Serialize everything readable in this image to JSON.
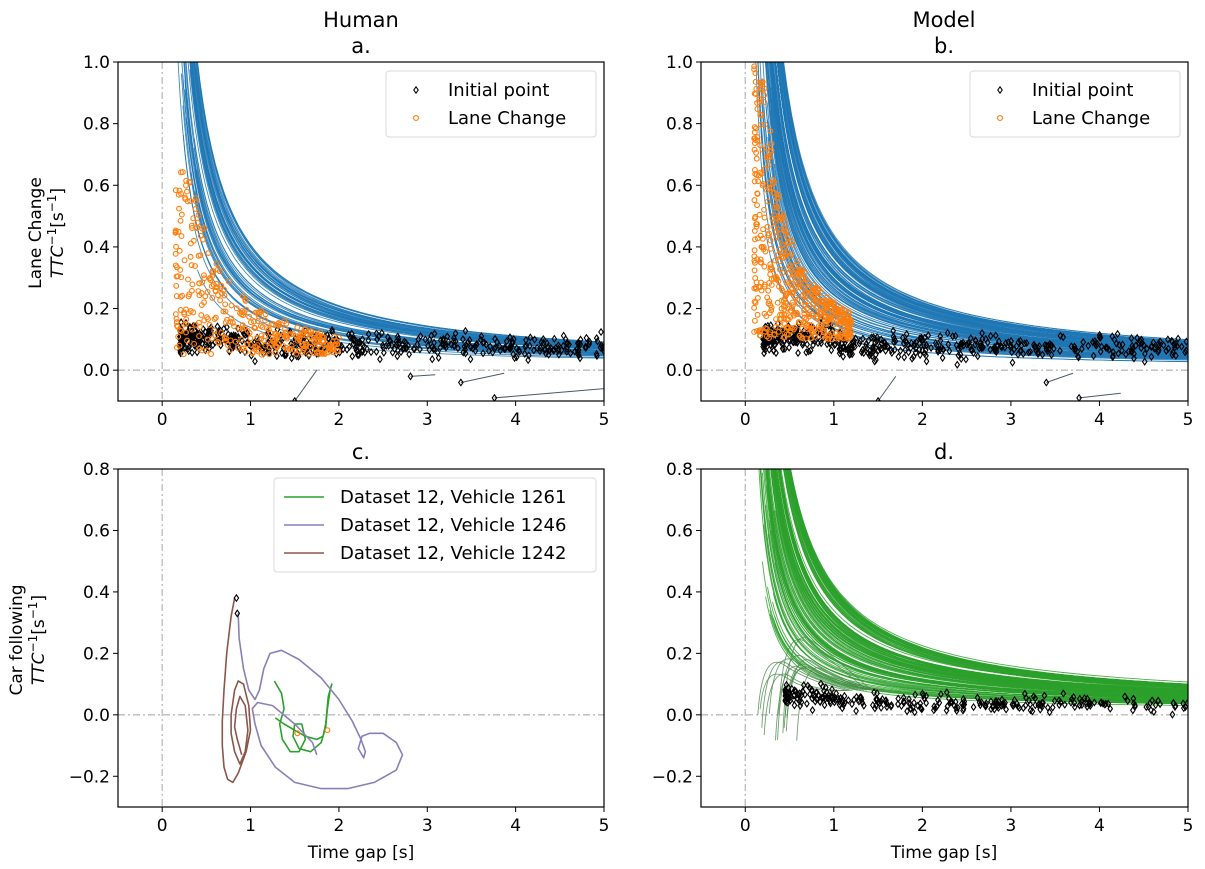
{
  "figure": {
    "column_titles": [
      "Human",
      "Model"
    ],
    "row_labels": [
      {
        "line1": "Lane Change",
        "line2": "TTC",
        "sup": "−1",
        "unit_open": "[s",
        "unit_sup": "−1",
        "unit_close": "]"
      },
      {
        "line1": "Car following",
        "line2": "TTC",
        "sup": "−1",
        "unit_open": "[s",
        "unit_sup": "−1",
        "unit_close": "]"
      }
    ],
    "xlabel": "Time gap [s]"
  },
  "colors": {
    "trajectory_blue": "#1f77b4",
    "lane_change_orange": "#ff7f0e",
    "initial_point_black": "#000000",
    "car_following_green": "#2ca02c",
    "vehicle_1246_purple": "#8c7fb8",
    "vehicle_1242_brown": "#8c564b",
    "zero_line_gray": "#bbbbbb"
  },
  "chart_data": [
    {
      "id": "a",
      "type": "scatter",
      "panel_label": "a.",
      "title": "Human",
      "xlabel": "",
      "ylabel": "Lane Change TTC^-1 [s^-1]",
      "xlim": [
        -0.5,
        5
      ],
      "ylim": [
        -0.1,
        1.0
      ],
      "xticks": [
        0,
        1,
        2,
        3,
        4,
        5
      ],
      "yticks": [
        0.0,
        0.2,
        0.4,
        0.6,
        0.8,
        1.0
      ],
      "ytick_labels": [
        "0.0",
        "0.2",
        "0.4",
        "0.6",
        "0.8",
        "1.0"
      ],
      "reference_lines": {
        "x": 0,
        "y": 0
      },
      "legend": {
        "position": "top-right",
        "entries": [
          {
            "label": "Initial point",
            "marker": "diamond",
            "color": "#000000"
          },
          {
            "label": "Lane Change",
            "marker": "circle",
            "color": "#ff7f0e"
          }
        ]
      },
      "series": [
        {
          "name": "Trajectories",
          "kind": "curves",
          "color": "#1f77b4",
          "count": 60,
          "description": "hyperbolic decay TTC^-1 ~ k / time gap, k from 0.12 to 0.42",
          "k_range": [
            0.12,
            0.42
          ],
          "x_range": [
            0.15,
            5.0
          ]
        },
        {
          "name": "Initial point",
          "kind": "points",
          "marker": "diamond",
          "color": "#000000",
          "cluster": {
            "x_range": [
              0.2,
              5.0
            ],
            "y_center": 0.08,
            "y_spread": 0.07,
            "count": 500
          }
        },
        {
          "name": "Lane Change",
          "kind": "points",
          "marker": "circle",
          "color": "#ff7f0e",
          "cluster": {
            "x_range": [
              0.15,
              2.0
            ],
            "y_range": [
              0.05,
              0.66
            ],
            "count": 350
          }
        },
        {
          "name": "Outliers",
          "kind": "segments",
          "color": "#000000",
          "points": [
            [
              3.38,
              -0.04,
              3.87,
              -0.01
            ],
            [
              3.76,
              -0.09,
              5.0,
              -0.06
            ],
            [
              2.81,
              -0.02,
              3.09,
              -0.015
            ],
            [
              1.5,
              -0.1,
              1.75,
              0.0
            ]
          ]
        }
      ]
    },
    {
      "id": "b",
      "type": "scatter",
      "panel_label": "b.",
      "title": "Model",
      "xlabel": "",
      "ylabel": "",
      "xlim": [
        -0.5,
        5
      ],
      "ylim": [
        -0.1,
        1.0
      ],
      "xticks": [
        0,
        1,
        2,
        3,
        4,
        5
      ],
      "yticks": [
        0.0,
        0.2,
        0.4,
        0.6,
        0.8,
        1.0
      ],
      "ytick_labels": [
        "0.0",
        "0.2",
        "0.4",
        "0.6",
        "0.8",
        "1.0"
      ],
      "reference_lines": {
        "x": 0,
        "y": 0
      },
      "legend": {
        "position": "top-right",
        "entries": [
          {
            "label": "Initial point",
            "marker": "diamond",
            "color": "#000000"
          },
          {
            "label": "Lane Change",
            "marker": "circle",
            "color": "#ff7f0e"
          }
        ]
      },
      "series": [
        {
          "name": "Trajectories",
          "kind": "curves",
          "color": "#1f77b4",
          "count": 120,
          "description": "dense hyperbolic band, k from 0.10 to 0.45",
          "k_range": [
            0.1,
            0.45
          ],
          "x_range": [
            0.1,
            5.0
          ]
        },
        {
          "name": "Initial point",
          "kind": "points",
          "marker": "diamond",
          "color": "#000000",
          "cluster": {
            "x_range": [
              0.2,
              5.0
            ],
            "y_center": 0.08,
            "y_spread": 0.07,
            "count": 500
          }
        },
        {
          "name": "Lane Change",
          "kind": "points",
          "marker": "circle",
          "color": "#ff7f0e",
          "cluster": {
            "x_range": [
              0.1,
              1.2
            ],
            "y_range": [
              0.1,
              1.0
            ],
            "count": 500
          }
        },
        {
          "name": "Outliers",
          "kind": "segments",
          "color": "#000000",
          "points": [
            [
              3.4,
              -0.04,
              3.7,
              -0.01
            ],
            [
              3.77,
              -0.09,
              4.24,
              -0.075
            ],
            [
              1.5,
              -0.1,
              1.7,
              -0.02
            ]
          ]
        }
      ]
    },
    {
      "id": "c",
      "type": "line",
      "panel_label": "c.",
      "title": "",
      "xlabel": "Time gap [s]",
      "ylabel": "Car following TTC^-1 [s^-1]",
      "xlim": [
        -0.5,
        5
      ],
      "ylim": [
        -0.3,
        0.8
      ],
      "xticks": [
        0,
        1,
        2,
        3,
        4,
        5
      ],
      "yticks": [
        -0.2,
        0.0,
        0.2,
        0.4,
        0.6,
        0.8
      ],
      "ytick_labels": [
        "−0.2",
        "0.0",
        "0.2",
        "0.4",
        "0.6",
        "0.8"
      ],
      "reference_lines": {
        "x": 0,
        "y": 0
      },
      "legend": {
        "position": "top-right",
        "entries": [
          {
            "label": "Dataset 12, Vehicle 1261",
            "color": "#2ca02c"
          },
          {
            "label": "Dataset 12, Vehicle 1246",
            "color": "#8c7fb8"
          },
          {
            "label": "Dataset 12, Vehicle 1242",
            "color": "#8c564b"
          }
        ]
      },
      "series": [
        {
          "name": "Dataset 12, Vehicle 1261",
          "color": "#2ca02c",
          "x": [
            1.27,
            1.35,
            1.38,
            1.33,
            1.36,
            1.45,
            1.55,
            1.62,
            1.58,
            1.5,
            1.48,
            1.55,
            1.68,
            1.8,
            1.85,
            1.87,
            1.9,
            1.92,
            1.88,
            1.85,
            1.82,
            1.75,
            1.62,
            1.5,
            1.38,
            1.28
          ],
          "y": [
            0.11,
            0.07,
            0.02,
            -0.03,
            -0.08,
            -0.12,
            -0.12,
            -0.08,
            -0.03,
            -0.03,
            -0.07,
            -0.11,
            -0.12,
            -0.09,
            -0.04,
            0.02,
            0.08,
            0.1,
            0.06,
            -0.03,
            -0.07,
            -0.08,
            -0.07,
            -0.05,
            -0.03,
            -0.01
          ]
        },
        {
          "name": "Dataset 12, Vehicle 1246",
          "color": "#8c7fb8",
          "x": [
            0.86,
            0.87,
            0.92,
            0.98,
            1.05,
            1.1,
            1.15,
            1.22,
            1.35,
            1.55,
            1.8,
            2.0,
            2.15,
            2.25,
            2.3,
            2.28,
            2.22,
            2.26,
            2.35,
            2.5,
            2.65,
            2.72,
            2.65,
            2.4,
            2.1,
            1.8,
            1.5,
            1.28,
            1.12,
            1.05,
            1.02,
            1.08,
            1.25,
            1.5,
            1.7,
            1.75
          ],
          "y": [
            0.33,
            0.25,
            0.15,
            0.08,
            0.05,
            0.08,
            0.15,
            0.2,
            0.21,
            0.18,
            0.12,
            0.05,
            -0.02,
            -0.08,
            -0.12,
            -0.14,
            -0.11,
            -0.07,
            -0.06,
            -0.06,
            -0.09,
            -0.13,
            -0.18,
            -0.22,
            -0.24,
            -0.24,
            -0.22,
            -0.17,
            -0.1,
            -0.03,
            0.02,
            0.04,
            0.03,
            -0.03,
            -0.09,
            -0.13
          ]
        },
        {
          "name": "Dataset 12, Vehicle 1242",
          "color": "#8c564b",
          "x": [
            0.82,
            0.78,
            0.73,
            0.7,
            0.68,
            0.68,
            0.7,
            0.74,
            0.8,
            0.86,
            0.95,
            1.0,
            0.98,
            0.92,
            0.86,
            0.82,
            0.78,
            0.78,
            0.82,
            0.88,
            0.94,
            0.97,
            0.94,
            0.88,
            0.84,
            0.82,
            0.85,
            0.9
          ],
          "y": [
            0.38,
            0.32,
            0.2,
            0.08,
            -0.02,
            -0.1,
            -0.17,
            -0.21,
            -0.22,
            -0.19,
            -0.12,
            -0.05,
            0.03,
            0.1,
            0.11,
            0.08,
            0.0,
            -0.06,
            -0.12,
            -0.16,
            -0.12,
            -0.05,
            0.03,
            0.06,
            0.02,
            -0.04,
            -0.08,
            -0.13
          ]
        }
      ],
      "markers": [
        {
          "label": "Initial point",
          "marker": "diamond",
          "x": 0.84,
          "y": 0.38
        },
        {
          "label": "Initial point",
          "marker": "diamond",
          "x": 0.85,
          "y": 0.33
        },
        {
          "label": "Lane Change",
          "marker": "circle",
          "x": 1.53,
          "y": -0.06
        },
        {
          "label": "Lane Change",
          "marker": "circle",
          "x": 1.87,
          "y": -0.05
        }
      ]
    },
    {
      "id": "d",
      "type": "line",
      "panel_label": "d.",
      "title": "",
      "xlabel": "Time gap [s]",
      "ylabel": "",
      "xlim": [
        -0.5,
        5
      ],
      "ylim": [
        -0.3,
        0.8
      ],
      "xticks": [
        0,
        1,
        2,
        3,
        4,
        5
      ],
      "yticks": [
        -0.2,
        0.0,
        0.2,
        0.4,
        0.6,
        0.8
      ],
      "ytick_labels": [
        "−0.2",
        "0.0",
        "0.2",
        "0.4",
        "0.6",
        "0.8"
      ],
      "reference_lines": {
        "x": 0,
        "y": 0
      },
      "series": [
        {
          "name": "Model car-following trajectories",
          "kind": "curves",
          "color": "#2ca02c",
          "count": 130,
          "description": "hyperbolic decay converging to ~0.05-0.09 at 5 s",
          "k_range": [
            0.08,
            0.42
          ],
          "x_range": [
            0.1,
            5.0
          ]
        },
        {
          "name": "Initial point",
          "kind": "points",
          "marker": "diamond",
          "color": "#000000",
          "cluster": {
            "x_range": [
              0.45,
              5.0
            ],
            "y_center": 0.04,
            "y_spread": 0.05,
            "count": 300
          }
        }
      ]
    }
  ]
}
